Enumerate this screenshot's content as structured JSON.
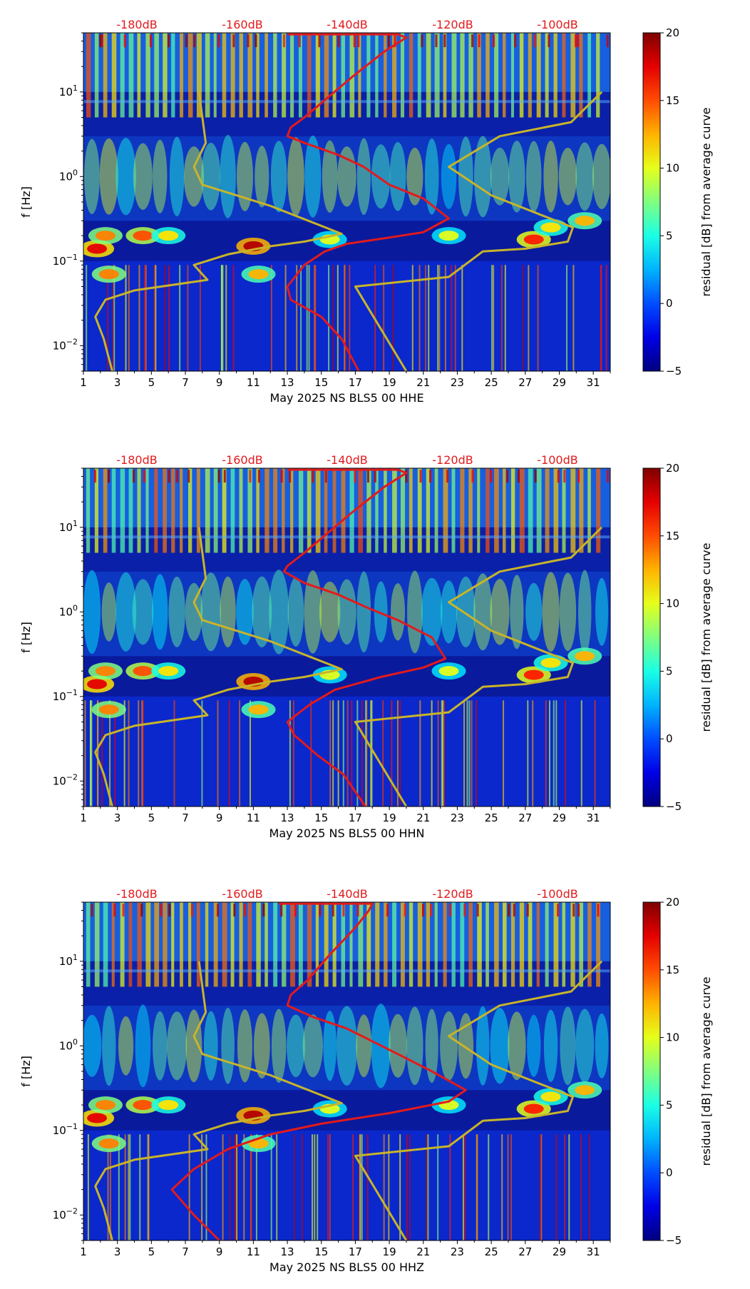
{
  "chart_data": [
    {
      "type": "heatmap",
      "xlabel": "May 2025 NS BLS5 00 HHE",
      "ylabel": "f [Hz]",
      "colorbar_label": "residual [dB] from average curve",
      "colorbar_ticks": [
        "20",
        "15",
        "10",
        "5",
        "0",
        "−5"
      ],
      "colorbar_range": [
        -5,
        20
      ],
      "colormap": "jet",
      "x_ticks": [
        "1",
        "3",
        "5",
        "7",
        "9",
        "11",
        "13",
        "15",
        "17",
        "19",
        "21",
        "23",
        "25",
        "27",
        "29",
        "31"
      ],
      "xlim": [
        1,
        32
      ],
      "y_scale": "log",
      "y_ticks": [
        {
          "base": "10",
          "exp": "1"
        },
        {
          "base": "10",
          "exp": "0"
        },
        {
          "base": "10",
          "exp": "−1"
        },
        {
          "base": "10",
          "exp": "−2"
        }
      ],
      "ylim": [
        0.005,
        50
      ],
      "db_labels": [
        "-180dB",
        "-160dB",
        "-140dB",
        "-120dB",
        "-100dB"
      ],
      "db_color": "#e31a1c",
      "red_curve_color": "#e31a1c",
      "yellow_curve_color": "#c8b42a",
      "red_curve": [
        [
          13.0,
          48
        ],
        [
          19.5,
          48
        ],
        [
          20.0,
          44
        ],
        [
          18.7,
          30
        ],
        [
          16.8,
          15
        ],
        [
          15.2,
          8
        ],
        [
          14.0,
          5
        ],
        [
          13.2,
          3.8
        ],
        [
          13.0,
          3.0
        ],
        [
          14.0,
          2.5
        ],
        [
          16.0,
          1.8
        ],
        [
          17.5,
          1.3
        ],
        [
          19.0,
          0.8
        ],
        [
          21.0,
          0.55
        ],
        [
          22.5,
          0.32
        ],
        [
          21.0,
          0.22
        ],
        [
          19.0,
          0.19
        ],
        [
          16.5,
          0.16
        ],
        [
          15.2,
          0.13
        ],
        [
          14.0,
          0.09
        ],
        [
          13.0,
          0.05
        ],
        [
          13.2,
          0.035
        ],
        [
          15.0,
          0.022
        ],
        [
          16.2,
          0.012
        ],
        [
          17.2,
          0.005
        ]
      ],
      "yellow_curve": [
        [
          2.7,
          0.005
        ],
        [
          2.2,
          0.012
        ],
        [
          1.7,
          0.022
        ],
        [
          2.3,
          0.035
        ],
        [
          4.0,
          0.045
        ],
        [
          8.3,
          0.06
        ],
        [
          7.5,
          0.09
        ],
        [
          9.5,
          0.12
        ],
        [
          12.0,
          0.15
        ],
        [
          14.0,
          0.17
        ],
        [
          16.2,
          0.21
        ],
        [
          12.0,
          0.45
        ],
        [
          10.0,
          0.6
        ],
        [
          8.0,
          0.8
        ],
        [
          7.5,
          1.3
        ],
        [
          8.2,
          2.5
        ],
        [
          7.8,
          10
        ],
        [
          8.2,
          2.5
        ],
        [
          7.5,
          1.3
        ],
        [
          8.0,
          0.8
        ],
        [
          10.0,
          0.6
        ],
        [
          12.0,
          0.45
        ],
        [
          16.2,
          0.21
        ],
        [
          16.2,
          0.21
        ],
        [
          14.0,
          0.17
        ],
        [
          12.0,
          0.15
        ],
        [
          9.5,
          0.12
        ],
        [
          7.5,
          0.09
        ],
        [
          8.3,
          0.06
        ],
        [
          4.0,
          0.045
        ],
        [
          2.3,
          0.035
        ],
        [
          1.7,
          0.022
        ],
        [
          2.2,
          0.012
        ],
        [
          2.7,
          0.005
        ]
      ],
      "yellow_curve2": [
        [
          20.0,
          0.005
        ],
        [
          17.0,
          0.05
        ],
        [
          22.5,
          0.065
        ],
        [
          24.5,
          0.13
        ],
        [
          27.0,
          0.14
        ],
        [
          29.5,
          0.17
        ],
        [
          29.8,
          0.25
        ],
        [
          25.0,
          0.6
        ],
        [
          22.5,
          1.3
        ],
        [
          25.5,
          3.0
        ],
        [
          29.7,
          4.4
        ],
        [
          31.5,
          10
        ]
      ]
    },
    {
      "type": "heatmap",
      "xlabel": "May 2025 NS BLS5 00 HHN",
      "ylabel": "f [Hz]",
      "colorbar_label": "residual [dB] from average curve",
      "colorbar_ticks": [
        "20",
        "15",
        "10",
        "5",
        "0",
        "−5"
      ],
      "colorbar_range": [
        -5,
        20
      ],
      "colormap": "jet",
      "x_ticks": [
        "1",
        "3",
        "5",
        "7",
        "9",
        "11",
        "13",
        "15",
        "17",
        "19",
        "21",
        "23",
        "25",
        "27",
        "29",
        "31"
      ],
      "xlim": [
        1,
        32
      ],
      "y_scale": "log",
      "y_ticks": [
        {
          "base": "10",
          "exp": "1"
        },
        {
          "base": "10",
          "exp": "0"
        },
        {
          "base": "10",
          "exp": "−1"
        },
        {
          "base": "10",
          "exp": "−2"
        }
      ],
      "ylim": [
        0.005,
        50
      ],
      "db_labels": [
        "-180dB",
        "-160dB",
        "-140dB",
        "-120dB",
        "-100dB"
      ],
      "db_color": "#e31a1c",
      "red_curve_color": "#e31a1c",
      "yellow_curve_color": "#c8b42a",
      "red_curve": [
        [
          13.0,
          48
        ],
        [
          19.5,
          48
        ],
        [
          20.0,
          44
        ],
        [
          18.7,
          30
        ],
        [
          16.8,
          15
        ],
        [
          15.2,
          8
        ],
        [
          14.0,
          5
        ],
        [
          13.0,
          3.5
        ],
        [
          12.8,
          3.0
        ],
        [
          14.0,
          2.2
        ],
        [
          16.0,
          1.6
        ],
        [
          17.8,
          1.1
        ],
        [
          19.5,
          0.8
        ],
        [
          21.5,
          0.5
        ],
        [
          22.3,
          0.28
        ],
        [
          21.0,
          0.22
        ],
        [
          18.5,
          0.17
        ],
        [
          15.8,
          0.12
        ],
        [
          14.3,
          0.08
        ],
        [
          13.0,
          0.05
        ],
        [
          13.4,
          0.035
        ],
        [
          14.8,
          0.02
        ],
        [
          16.3,
          0.012
        ],
        [
          17.6,
          0.005
        ]
      ],
      "yellow_curve": [
        [
          2.7,
          0.005
        ],
        [
          2.2,
          0.012
        ],
        [
          1.7,
          0.022
        ],
        [
          2.3,
          0.035
        ],
        [
          4.0,
          0.045
        ],
        [
          8.3,
          0.06
        ],
        [
          7.5,
          0.09
        ],
        [
          9.5,
          0.12
        ],
        [
          12.0,
          0.15
        ],
        [
          14.0,
          0.17
        ],
        [
          16.2,
          0.21
        ],
        [
          12.0,
          0.45
        ],
        [
          10.0,
          0.6
        ],
        [
          8.0,
          0.8
        ],
        [
          7.5,
          1.3
        ],
        [
          8.2,
          2.5
        ],
        [
          7.8,
          10
        ]
      ],
      "yellow_curve2": [
        [
          20.0,
          0.005
        ],
        [
          17.0,
          0.05
        ],
        [
          22.5,
          0.065
        ],
        [
          24.5,
          0.13
        ],
        [
          27.0,
          0.14
        ],
        [
          29.5,
          0.17
        ],
        [
          29.8,
          0.25
        ],
        [
          25.0,
          0.6
        ],
        [
          22.5,
          1.3
        ],
        [
          25.5,
          3.0
        ],
        [
          29.7,
          4.4
        ],
        [
          31.5,
          10
        ]
      ]
    },
    {
      "type": "heatmap",
      "xlabel": "May 2025 NS BLS5 00 HHZ",
      "ylabel": "f [Hz]",
      "colorbar_label": "residual [dB] from average curve",
      "colorbar_ticks": [
        "20",
        "15",
        "10",
        "5",
        "0",
        "−5"
      ],
      "colorbar_range": [
        -5,
        20
      ],
      "colormap": "jet",
      "x_ticks": [
        "1",
        "3",
        "5",
        "7",
        "9",
        "11",
        "13",
        "15",
        "17",
        "19",
        "21",
        "23",
        "25",
        "27",
        "29",
        "31"
      ],
      "xlim": [
        1,
        32
      ],
      "y_scale": "log",
      "y_ticks": [
        {
          "base": "10",
          "exp": "1"
        },
        {
          "base": "10",
          "exp": "0"
        },
        {
          "base": "10",
          "exp": "−1"
        },
        {
          "base": "10",
          "exp": "−2"
        }
      ],
      "ylim": [
        0.005,
        50
      ],
      "db_labels": [
        "-180dB",
        "-160dB",
        "-140dB",
        "-120dB",
        "-100dB"
      ],
      "db_color": "#e31a1c",
      "red_curve_color": "#e31a1c",
      "yellow_curve_color": "#c8b42a",
      "red_curve": [
        [
          12.5,
          48
        ],
        [
          18.0,
          48
        ],
        [
          17.8,
          40
        ],
        [
          17.0,
          25
        ],
        [
          15.5,
          12
        ],
        [
          14.2,
          6
        ],
        [
          13.2,
          4.0
        ],
        [
          13.0,
          3.0
        ],
        [
          14.5,
          2.2
        ],
        [
          16.5,
          1.6
        ],
        [
          19.5,
          0.8
        ],
        [
          21.5,
          0.5
        ],
        [
          23.5,
          0.3
        ],
        [
          22.5,
          0.22
        ],
        [
          19.0,
          0.16
        ],
        [
          15.0,
          0.12
        ],
        [
          12.0,
          0.09
        ],
        [
          9.5,
          0.06
        ],
        [
          7.5,
          0.035
        ],
        [
          6.2,
          0.02
        ],
        [
          7.5,
          0.01
        ],
        [
          9.0,
          0.005
        ]
      ],
      "yellow_curve": [
        [
          2.7,
          0.005
        ],
        [
          2.2,
          0.012
        ],
        [
          1.7,
          0.022
        ],
        [
          2.3,
          0.035
        ],
        [
          4.0,
          0.045
        ],
        [
          8.3,
          0.06
        ],
        [
          7.5,
          0.09
        ],
        [
          9.5,
          0.12
        ],
        [
          12.0,
          0.15
        ],
        [
          14.0,
          0.17
        ],
        [
          16.2,
          0.21
        ],
        [
          12.0,
          0.45
        ],
        [
          10.0,
          0.6
        ],
        [
          8.0,
          0.8
        ],
        [
          7.5,
          1.3
        ],
        [
          8.2,
          2.5
        ],
        [
          7.8,
          10
        ]
      ],
      "yellow_curve2": [
        [
          20.0,
          0.005
        ],
        [
          17.0,
          0.05
        ],
        [
          22.5,
          0.065
        ],
        [
          24.5,
          0.13
        ],
        [
          27.0,
          0.14
        ],
        [
          29.5,
          0.17
        ],
        [
          29.8,
          0.25
        ],
        [
          25.0,
          0.6
        ],
        [
          22.5,
          1.3
        ],
        [
          25.5,
          3.0
        ],
        [
          29.7,
          4.4
        ],
        [
          31.5,
          10
        ]
      ]
    }
  ]
}
